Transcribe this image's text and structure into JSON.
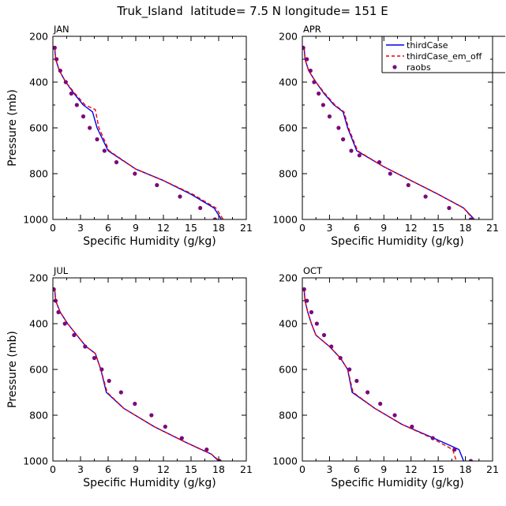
{
  "title": "Truk_Island  latitude= 7.5 N longitude= 151 E",
  "colors": {
    "thirdCase": "#0000ee",
    "thirdCase_em_off": "#ee0000",
    "raobs": "#7a0a7a",
    "frame": "#000000"
  },
  "legend": {
    "items": [
      {
        "label": "thirdCase",
        "style": "solid-line",
        "color": "#0000ee"
      },
      {
        "label": "thirdCase_em_off",
        "style": "dashed-line",
        "color": "#ee0000"
      },
      {
        "label": "raobs",
        "style": "dot",
        "color": "#7a0a7a"
      }
    ]
  },
  "chart_data": [
    {
      "type": "line",
      "panel": "JAN",
      "xlabel": "Specific Humidity (g/kg)",
      "ylabel": "Pressure (mb)",
      "xlim": [
        0,
        21
      ],
      "ylim": [
        200,
        1000
      ],
      "y_inverted": true,
      "xticks": [
        "0",
        "3",
        "6",
        "9",
        "12",
        "15",
        "18",
        "21"
      ],
      "yticks": [
        "200",
        "400",
        "600",
        "800",
        "1000"
      ],
      "show_ylabel": true,
      "series": [
        {
          "name": "thirdCase",
          "x": [
            0.2,
            0.3,
            0.7,
            1.4,
            2.3,
            3.3,
            4.3,
            4.8,
            6.0,
            9.0,
            12.0,
            15.0,
            17.5,
            18.3
          ],
          "y": [
            250,
            300,
            350,
            400,
            450,
            500,
            530,
            600,
            700,
            780,
            830,
            890,
            950,
            1000
          ]
        },
        {
          "name": "thirdCase_em_off",
          "x": [
            0.2,
            0.3,
            0.7,
            1.4,
            2.4,
            3.5,
            4.6,
            5.0,
            6.1,
            9.0,
            12.0,
            15.2,
            17.7,
            18.5
          ],
          "y": [
            250,
            300,
            350,
            400,
            450,
            500,
            520,
            600,
            700,
            780,
            830,
            890,
            950,
            1000
          ]
        },
        {
          "name": "raobs",
          "x": [
            0.2,
            0.4,
            0.8,
            1.4,
            2.0,
            2.6,
            3.3,
            4.0,
            4.8,
            5.6,
            6.9,
            8.9,
            11.3,
            13.8,
            16.0,
            17.6
          ],
          "y": [
            250,
            300,
            350,
            400,
            450,
            500,
            550,
            600,
            650,
            700,
            750,
            800,
            850,
            900,
            950,
            1000
          ]
        }
      ]
    },
    {
      "type": "line",
      "panel": "APR",
      "xlabel": "Specific Humidity (g/kg)",
      "ylabel": "",
      "xlim": [
        0,
        21
      ],
      "ylim": [
        200,
        1000
      ],
      "y_inverted": true,
      "xticks": [
        "0",
        "3",
        "6",
        "9",
        "12",
        "15",
        "18",
        "21"
      ],
      "yticks": [
        "200",
        "400",
        "600",
        "800",
        "1000"
      ],
      "show_ylabel": false,
      "series": [
        {
          "name": "thirdCase",
          "x": [
            0.2,
            0.3,
            0.7,
            1.5,
            2.4,
            3.5,
            4.5,
            5.0,
            6.0,
            9.0,
            12.0,
            15.0,
            17.8,
            19.0
          ],
          "y": [
            250,
            300,
            350,
            400,
            450,
            500,
            530,
            600,
            700,
            770,
            830,
            890,
            950,
            1000
          ]
        },
        {
          "name": "thirdCase_em_off",
          "x": [
            0.2,
            0.3,
            0.7,
            1.5,
            2.5,
            3.6,
            4.6,
            5.1,
            6.1,
            9.0,
            12.0,
            15.0,
            17.8,
            18.9
          ],
          "y": [
            250,
            300,
            350,
            400,
            450,
            500,
            530,
            600,
            700,
            770,
            830,
            890,
            950,
            1000
          ]
        },
        {
          "name": "raobs",
          "x": [
            0.1,
            0.5,
            0.9,
            1.3,
            1.8,
            2.3,
            3.0,
            4.0,
            4.5,
            5.4,
            6.3,
            8.5,
            9.7,
            11.7,
            13.6,
            16.2,
            18.6
          ],
          "y": [
            250,
            300,
            350,
            400,
            450,
            500,
            550,
            600,
            650,
            700,
            720,
            750,
            800,
            850,
            900,
            950,
            1000
          ]
        }
      ]
    },
    {
      "type": "line",
      "panel": "JUL",
      "xlabel": "Specific Humidity (g/kg)",
      "ylabel": "Pressure (mb)",
      "xlim": [
        0,
        21
      ],
      "ylim": [
        200,
        1000
      ],
      "y_inverted": true,
      "xticks": [
        "0",
        "3",
        "6",
        "9",
        "12",
        "15",
        "18",
        "21"
      ],
      "yticks": [
        "200",
        "400",
        "600",
        "800",
        "1000"
      ],
      "show_ylabel": true,
      "series": [
        {
          "name": "thirdCase",
          "x": [
            0.2,
            0.3,
            0.8,
            1.6,
            2.6,
            3.6,
            4.6,
            5.2,
            5.8,
            7.7,
            11.0,
            14.5,
            17.2,
            18.0
          ],
          "y": [
            250,
            300,
            350,
            400,
            450,
            500,
            530,
            600,
            700,
            770,
            850,
            920,
            970,
            1000
          ]
        },
        {
          "name": "thirdCase_em_off",
          "x": [
            0.2,
            0.3,
            0.8,
            1.6,
            2.6,
            3.6,
            4.6,
            5.2,
            5.9,
            7.7,
            11.0,
            14.5,
            17.2,
            18.1
          ],
          "y": [
            250,
            300,
            350,
            400,
            450,
            500,
            530,
            600,
            700,
            770,
            850,
            920,
            970,
            1000
          ]
        },
        {
          "name": "raobs",
          "x": [
            0.1,
            0.3,
            0.6,
            1.3,
            2.3,
            3.5,
            4.5,
            5.3,
            6.1,
            7.4,
            8.9,
            10.7,
            12.2,
            14.0,
            16.7,
            18.1
          ],
          "y": [
            250,
            300,
            350,
            400,
            450,
            500,
            550,
            600,
            650,
            700,
            750,
            800,
            850,
            900,
            950,
            1000
          ]
        }
      ]
    },
    {
      "type": "line",
      "panel": "OCT",
      "xlabel": "Specific Humidity (g/kg)",
      "ylabel": "",
      "xlim": [
        0,
        21
      ],
      "ylim": [
        200,
        1000
      ],
      "y_inverted": true,
      "xticks": [
        "0",
        "3",
        "6",
        "9",
        "12",
        "15",
        "18",
        "21"
      ],
      "yticks": [
        "200",
        "400",
        "600",
        "800",
        "1000"
      ],
      "show_ylabel": false,
      "series": [
        {
          "name": "thirdCase",
          "x": [
            0.2,
            0.3,
            0.6,
            1.0,
            1.5,
            3.0,
            4.2,
            5.0,
            5.5,
            8.0,
            11.0,
            14.5,
            17.3,
            17.8
          ],
          "y": [
            250,
            300,
            350,
            400,
            450,
            500,
            550,
            600,
            700,
            770,
            840,
            900,
            950,
            1000
          ]
        },
        {
          "name": "thirdCase_em_off",
          "x": [
            0.2,
            0.3,
            0.6,
            1.0,
            1.5,
            3.0,
            4.2,
            5.0,
            5.6,
            8.0,
            11.0,
            14.3,
            16.6,
            17.0
          ],
          "y": [
            250,
            300,
            350,
            400,
            450,
            500,
            550,
            600,
            700,
            770,
            840,
            900,
            950,
            1000
          ]
        },
        {
          "name": "raobs",
          "x": [
            0.2,
            0.5,
            1.0,
            1.6,
            2.4,
            3.2,
            4.2,
            5.2,
            6.0,
            7.2,
            8.6,
            10.2,
            12.1,
            14.4,
            16.8,
            18.6
          ],
          "y": [
            250,
            300,
            350,
            400,
            450,
            500,
            550,
            600,
            650,
            700,
            750,
            800,
            850,
            900,
            950,
            1000
          ]
        }
      ]
    }
  ]
}
